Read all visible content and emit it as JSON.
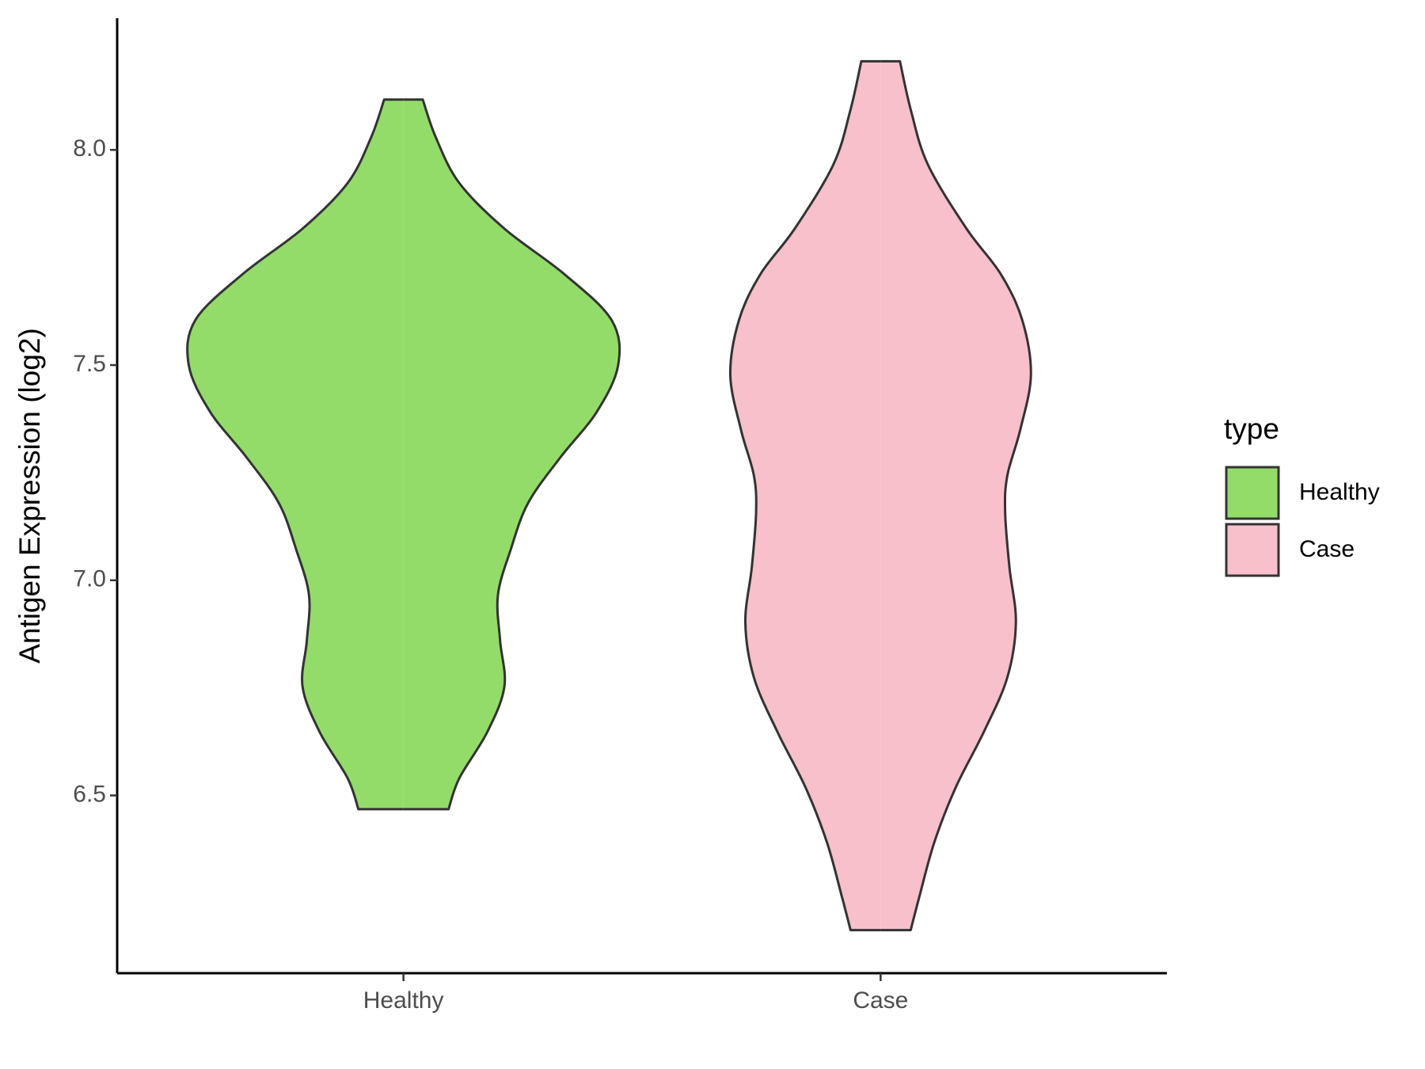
{
  "chart_data": {
    "type": "violin",
    "y_label": "Antigen Expression (log2)",
    "categories": [
      "Healthy",
      "Case"
    ],
    "ylim": [
      6.087,
      8.306
    ],
    "yticks": [
      {
        "value": 6.5,
        "label": "6.5"
      },
      {
        "value": 7,
        "label": "7.0"
      },
      {
        "value": 7.5,
        "label": "7.5"
      },
      {
        "value": 8,
        "label": "8.0"
      }
    ],
    "legend_title": "type",
    "legend_position": "right",
    "outline_color": "#333333",
    "series": [
      {
        "name": "Healthy",
        "color": "#93dc6a",
        "y": [
          8.117,
          8.03,
          7.923,
          7.817,
          7.711,
          7.604,
          7.5,
          7.391,
          7.285,
          7.179,
          7.072,
          6.966,
          6.86,
          6.753,
          6.647,
          6.54,
          6.468
        ],
        "density": [
          0.09,
          0.15,
          0.26,
          0.47,
          0.75,
          0.97,
          1.0,
          0.9,
          0.73,
          0.58,
          0.5,
          0.44,
          0.45,
          0.47,
          0.39,
          0.26,
          0.21
        ]
      },
      {
        "name": "Case",
        "color": "#f7c0cb",
        "y": [
          8.206,
          8.094,
          7.966,
          7.817,
          7.711,
          7.604,
          7.477,
          7.349,
          7.243,
          7.157,
          7.03,
          6.902,
          6.774,
          6.647,
          6.519,
          6.391,
          6.264,
          6.187
        ],
        "density": [
          0.09,
          0.14,
          0.22,
          0.4,
          0.56,
          0.66,
          0.7,
          0.65,
          0.59,
          0.58,
          0.6,
          0.63,
          0.59,
          0.48,
          0.35,
          0.25,
          0.18,
          0.14
        ]
      }
    ]
  }
}
